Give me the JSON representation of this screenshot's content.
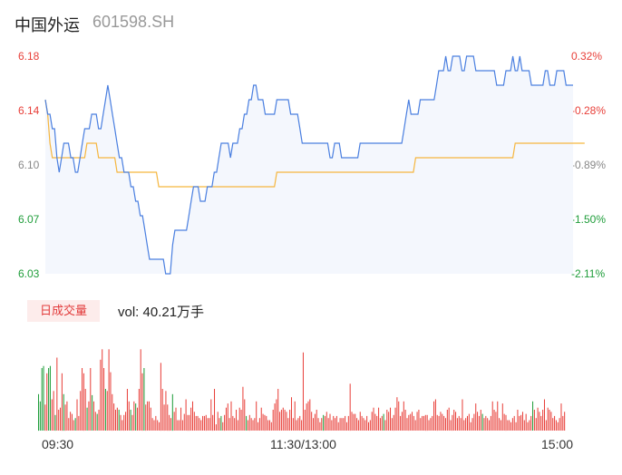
{
  "header": {
    "name": "中国外运",
    "code": "601598.SH"
  },
  "volume": {
    "badge": "日成交量",
    "label": "vol: 40.21万手"
  },
  "colors": {
    "up": "#e8403a",
    "down": "#1f9d3a",
    "neutral": "#888888",
    "price_line": "#4a7fe0",
    "avg_line": "#f5b63f",
    "area_fill": "#f4f7fd"
  },
  "chart_data": [
    {
      "type": "line",
      "title": "",
      "x_ticks": [
        "09:30",
        "11:30/13:00",
        "15:00"
      ],
      "y_ticks_left": [
        "6.18",
        "6.14",
        "6.10",
        "6.07",
        "6.03"
      ],
      "y_ticks_right": [
        "0.32%",
        "-0.28%",
        "-0.89%",
        "-1.50%",
        "-2.11%"
      ],
      "ylim": [
        6.03,
        6.18
      ],
      "grid": false,
      "series": [
        {
          "values": [
            6.15,
            6.14,
            6.14,
            6.13,
            6.13,
            6.11,
            6.1,
            6.11,
            6.12,
            6.12,
            6.12,
            6.11,
            6.11,
            6.1,
            6.1,
            6.11,
            6.12,
            6.13,
            6.13,
            6.13,
            6.14,
            6.14,
            6.14,
            6.13,
            6.13,
            6.14,
            6.15,
            6.16,
            6.15,
            6.14,
            6.13,
            6.12,
            6.11,
            6.11,
            6.1,
            6.1,
            6.1,
            6.09,
            6.09,
            6.08,
            6.08,
            6.07,
            6.07,
            6.06,
            6.05,
            6.04,
            6.04,
            6.04,
            6.04,
            6.04,
            6.04,
            6.04,
            6.03,
            6.03,
            6.03,
            6.05,
            6.06,
            6.06,
            6.06,
            6.06,
            6.06,
            6.06,
            6.07,
            6.08,
            6.09,
            6.09,
            6.09,
            6.08,
            6.08,
            6.08,
            6.09,
            6.09,
            6.09,
            6.1,
            6.1,
            6.11,
            6.12,
            6.12,
            6.12,
            6.12,
            6.11,
            6.12,
            6.12,
            6.12,
            6.13,
            6.13,
            6.14,
            6.14,
            6.15,
            6.15,
            6.16,
            6.16,
            6.15,
            6.15,
            6.15,
            6.14,
            6.14,
            6.14,
            6.14,
            6.14,
            6.15,
            6.15,
            6.15,
            6.15,
            6.15,
            6.15,
            6.14,
            6.14,
            6.14,
            6.14,
            6.13,
            6.12,
            6.12,
            6.12,
            6.12,
            6.12,
            6.12,
            6.12,
            6.12,
            6.12,
            6.12,
            6.12,
            6.12,
            6.11,
            6.11,
            6.12,
            6.12,
            6.12,
            6.11,
            6.11,
            6.11,
            6.11,
            6.11,
            6.11,
            6.11,
            6.11,
            6.12,
            6.12,
            6.12,
            6.12,
            6.12,
            6.12,
            6.12,
            6.12,
            6.12,
            6.12,
            6.12,
            6.12,
            6.12,
            6.12,
            6.12,
            6.12,
            6.12,
            6.12,
            6.12,
            6.13,
            6.14,
            6.15,
            6.14,
            6.14,
            6.14,
            6.14,
            6.15,
            6.15,
            6.15,
            6.15,
            6.15,
            6.15,
            6.15,
            6.16,
            6.17,
            6.17,
            6.17,
            6.18,
            6.17,
            6.17,
            6.18,
            6.18,
            6.18,
            6.18,
            6.17,
            6.17,
            6.18,
            6.18,
            6.18,
            6.18,
            6.17,
            6.17,
            6.17,
            6.17,
            6.17,
            6.17,
            6.17,
            6.17,
            6.17,
            6.16,
            6.16,
            6.16,
            6.16,
            6.17,
            6.17,
            6.17,
            6.18,
            6.17,
            6.17,
            6.18,
            6.17,
            6.17,
            6.17,
            6.17,
            6.16,
            6.16,
            6.16,
            6.16,
            6.16,
            6.16,
            6.17,
            6.17,
            6.16,
            6.16,
            6.16,
            6.17,
            6.17,
            6.17,
            6.17,
            6.16,
            6.16,
            6.16,
            6.16
          ]
        },
        {
          "values": [
            6.15,
            6.14,
            6.12,
            6.11,
            6.11,
            6.11,
            6.11,
            6.11,
            6.11,
            6.11,
            6.11,
            6.11,
            6.11,
            6.11,
            6.11,
            6.11,
            6.11,
            6.11,
            6.12,
            6.12,
            6.12,
            6.12,
            6.12,
            6.11,
            6.11,
            6.11,
            6.11,
            6.11,
            6.11,
            6.11,
            6.11,
            6.1,
            6.1,
            6.1,
            6.1,
            6.1,
            6.1,
            6.1,
            6.1,
            6.1,
            6.1,
            6.1,
            6.1,
            6.1,
            6.1,
            6.1,
            6.1,
            6.1,
            6.1,
            6.09,
            6.09,
            6.09,
            6.09,
            6.09,
            6.09,
            6.09,
            6.09,
            6.09,
            6.09,
            6.09,
            6.09,
            6.09,
            6.09,
            6.09,
            6.09,
            6.09,
            6.09,
            6.09,
            6.09,
            6.09,
            6.09,
            6.09,
            6.09,
            6.09,
            6.09,
            6.09,
            6.09,
            6.09,
            6.09,
            6.09,
            6.09,
            6.09,
            6.09,
            6.09,
            6.09,
            6.09,
            6.09,
            6.09,
            6.09,
            6.09,
            6.09,
            6.09,
            6.09,
            6.09,
            6.09,
            6.09,
            6.09,
            6.09,
            6.09,
            6.09,
            6.1,
            6.1,
            6.1,
            6.1,
            6.1,
            6.1,
            6.1,
            6.1,
            6.1,
            6.1,
            6.1,
            6.1,
            6.1,
            6.1,
            6.1,
            6.1,
            6.1,
            6.1,
            6.1,
            6.1,
            6.1,
            6.1,
            6.1,
            6.1,
            6.1,
            6.1,
            6.1,
            6.1,
            6.1,
            6.1,
            6.1,
            6.1,
            6.1,
            6.1,
            6.1,
            6.1,
            6.1,
            6.1,
            6.1,
            6.1,
            6.1,
            6.1,
            6.1,
            6.1,
            6.1,
            6.1,
            6.1,
            6.1,
            6.1,
            6.1,
            6.1,
            6.1,
            6.1,
            6.1,
            6.1,
            6.1,
            6.1,
            6.1,
            6.1,
            6.1,
            6.11,
            6.11,
            6.11,
            6.11,
            6.11,
            6.11,
            6.11,
            6.11,
            6.11,
            6.11,
            6.11,
            6.11,
            6.11,
            6.11,
            6.11,
            6.11,
            6.11,
            6.11,
            6.11,
            6.11,
            6.11,
            6.11,
            6.11,
            6.11,
            6.11,
            6.11,
            6.11,
            6.11,
            6.11,
            6.11,
            6.11,
            6.11,
            6.11,
            6.11,
            6.11,
            6.11,
            6.11,
            6.11,
            6.11,
            6.11,
            6.11,
            6.11,
            6.11,
            6.12,
            6.12,
            6.12,
            6.12,
            6.12,
            6.12,
            6.12,
            6.12,
            6.12,
            6.12,
            6.12,
            6.12,
            6.12,
            6.12,
            6.12,
            6.12,
            6.12,
            6.12,
            6.12,
            6.12,
            6.12,
            6.12,
            6.12,
            6.12,
            6.12,
            6.12,
            6.12,
            6.12,
            6.12,
            6.12,
            6.12
          ]
        }
      ]
    },
    {
      "type": "bar",
      "title": "",
      "values": [
        35,
        28,
        60,
        62,
        25,
        55,
        60,
        62,
        30,
        38,
        15,
        70,
        20,
        22,
        55,
        35,
        25,
        28,
        12,
        18,
        16,
        10,
        12,
        30,
        14,
        38,
        60,
        55,
        40,
        22,
        28,
        60,
        34,
        28,
        18,
        16,
        20,
        68,
        78,
        60,
        40,
        38,
        78,
        56,
        35,
        26,
        20,
        22,
        20,
        15,
        10,
        15,
        18,
        40,
        28,
        20,
        15,
        28,
        26,
        22,
        40,
        78,
        55,
        60,
        25,
        28,
        28,
        22,
        12,
        10,
        14,
        10,
        8,
        65,
        40,
        25,
        38,
        25,
        15,
        12,
        35,
        18,
        22,
        10,
        10,
        22,
        10,
        16,
        30,
        15,
        15,
        22,
        28,
        18,
        14,
        14,
        12,
        10,
        14,
        14,
        15,
        12,
        12,
        30,
        15,
        40,
        6,
        18,
        12,
        14,
        8,
        15,
        22,
        26,
        12,
        28,
        14,
        12,
        20,
        10,
        22,
        20,
        42,
        30,
        14,
        10,
        15,
        12,
        10,
        12,
        28,
        8,
        12,
        22,
        16,
        15,
        14,
        10,
        10,
        8,
        20,
        26,
        30,
        40,
        18,
        20,
        22,
        20,
        18,
        12,
        20,
        32,
        12,
        28,
        10,
        12,
        14,
        10,
        75,
        20,
        26,
        28,
        30,
        18,
        12,
        16,
        20,
        12,
        8,
        12,
        15,
        14,
        18,
        12,
        16,
        10,
        14,
        12,
        14,
        8,
        12,
        12,
        12,
        14,
        8,
        14,
        45,
        18,
        16,
        16,
        12,
        10,
        18,
        14,
        12,
        10,
        14,
        8,
        10,
        18,
        22,
        16,
        14,
        22,
        12,
        14,
        16,
        10,
        20,
        18,
        22,
        12,
        15,
        22,
        32,
        28,
        14,
        18,
        28,
        20,
        12,
        15,
        16,
        18,
        14,
        10,
        18,
        20,
        12,
        14,
        14,
        15,
        15,
        10,
        12,
        14,
        28,
        30,
        15,
        14,
        18,
        16,
        14,
        12,
        20,
        22,
        10,
        15,
        20,
        18,
        12,
        14,
        12,
        30,
        10,
        12,
        14,
        16,
        8,
        12,
        16,
        26,
        18,
        14,
        20,
        16,
        12,
        14,
        12,
        10,
        14,
        28,
        20,
        18,
        28,
        12,
        10,
        26,
        16,
        15,
        10,
        10,
        8,
        12,
        14,
        8,
        20,
        14,
        15,
        18,
        10,
        16,
        8,
        10,
        14,
        28,
        20,
        12,
        22,
        18,
        14,
        20,
        30,
        10,
        22,
        20,
        18,
        12,
        14,
        10,
        8,
        12,
        26,
        14,
        18
      ],
      "colors": [
        "d",
        "d",
        "d",
        "d",
        "u",
        "u",
        "d",
        "d",
        "u",
        "u",
        "d",
        "u",
        "u",
        "u",
        "u",
        "d",
        "u",
        "u",
        "u",
        "u",
        "u",
        "u",
        "d",
        "u",
        "u",
        "u",
        "u",
        "u",
        "u",
        "d",
        "u",
        "u",
        "d",
        "u",
        "u",
        "d",
        "u",
        "u",
        "u",
        "u",
        "d",
        "u",
        "u",
        "u",
        "u",
        "u",
        "u",
        "u",
        "d",
        "u",
        "u",
        "u",
        "u",
        "u",
        "u",
        "d",
        "u",
        "u",
        "d",
        "u",
        "u",
        "u",
        "u",
        "d",
        "u",
        "u",
        "u",
        "u",
        "u",
        "u",
        "u",
        "u",
        "u",
        "u",
        "u",
        "u",
        "u",
        "u",
        "u",
        "u",
        "d",
        "u",
        "u",
        "u",
        "u",
        "u",
        "u",
        "u",
        "u",
        "u",
        "u",
        "u",
        "u",
        "u",
        "u",
        "u",
        "u",
        "u",
        "u",
        "u",
        "u",
        "u",
        "u",
        "u",
        "u",
        "u",
        "u",
        "u",
        "u",
        "d",
        "u",
        "u",
        "u",
        "u",
        "u",
        "u",
        "u",
        "u",
        "u",
        "u",
        "u",
        "u",
        "u",
        "u",
        "d",
        "u",
        "u",
        "u",
        "u",
        "u",
        "u",
        "u",
        "u",
        "u",
        "u",
        "u",
        "u",
        "u",
        "u",
        "u",
        "u",
        "u",
        "u",
        "u",
        "u",
        "u",
        "u",
        "u",
        "u",
        "u",
        "u",
        "u",
        "u",
        "u",
        "u",
        "u",
        "u",
        "u",
        "u",
        "u",
        "u",
        "u",
        "u",
        "u",
        "u",
        "u",
        "u",
        "u",
        "u",
        "u",
        "d",
        "u",
        "u",
        "u",
        "u",
        "u",
        "u",
        "u",
        "u",
        "u",
        "u",
        "u",
        "u",
        "u",
        "u",
        "u",
        "u",
        "u",
        "u",
        "u",
        "u",
        "u",
        "u",
        "u",
        "u",
        "u",
        "u",
        "u",
        "u",
        "u",
        "u",
        "u",
        "u",
        "u",
        "u",
        "u",
        "d",
        "u",
        "u",
        "u",
        "u",
        "u",
        "u",
        "u",
        "u",
        "u",
        "u",
        "u",
        "u",
        "u",
        "u",
        "u",
        "u",
        "u",
        "u",
        "u",
        "u",
        "u",
        "u",
        "u",
        "u",
        "u",
        "u",
        "u",
        "u",
        "u",
        "u",
        "u",
        "u",
        "u",
        "u",
        "u",
        "u",
        "u",
        "u",
        "u",
        "u",
        "u",
        "u",
        "u",
        "u",
        "u",
        "u",
        "u",
        "u",
        "u",
        "u",
        "u",
        "u",
        "u",
        "u",
        "u",
        "u",
        "u",
        "u",
        "d",
        "u",
        "u",
        "u",
        "u",
        "u",
        "u",
        "u",
        "u",
        "u",
        "u",
        "u",
        "u",
        "u",
        "u",
        "u",
        "u",
        "u",
        "u",
        "u",
        "u",
        "u",
        "u",
        "u",
        "u",
        "u",
        "u",
        "u",
        "u",
        "u",
        "d",
        "u",
        "u",
        "u",
        "u",
        "u",
        "u",
        "u",
        "u",
        "u",
        "u",
        "u",
        "u",
        "u",
        "u",
        "u",
        "u",
        "u",
        "u",
        "u",
        "u",
        "u"
      ]
    }
  ]
}
